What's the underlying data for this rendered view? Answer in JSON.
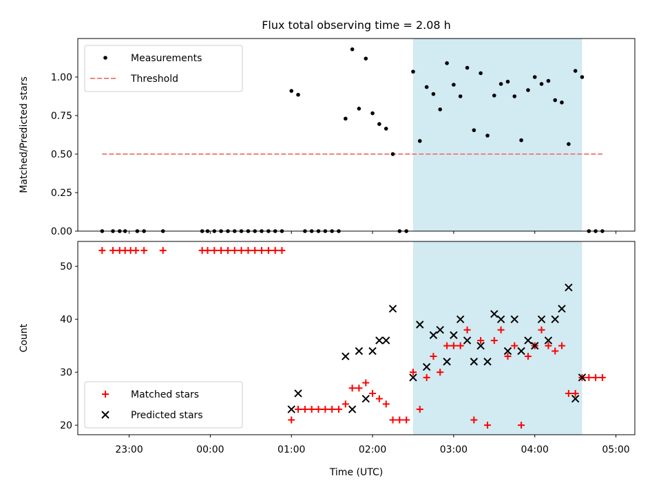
{
  "title": "Flux total observing time = 2.08 h",
  "colors": {
    "measurement": "#000000",
    "threshold": "#f08080",
    "matched": "#ff0000",
    "predicted": "#000000",
    "highlight": "#add8e6"
  },
  "chart_data": [
    {
      "type": "scatter",
      "name": "ratio-panel",
      "ylabel": "Matched/Predicted stars",
      "xlabel": "",
      "xlim_hours": [
        -1.633,
        5.233
      ],
      "ylim": [
        0,
        1.25
      ],
      "yticks": [
        0.0,
        0.25,
        0.5,
        0.75,
        1.0
      ],
      "ytick_labels": [
        "0.00",
        "0.25",
        "0.50",
        "0.75",
        "1.00"
      ],
      "highlight_hours": [
        2.5,
        4.583
      ],
      "legend": {
        "location": "top-left",
        "items": [
          "Measurements",
          "Threshold"
        ]
      },
      "threshold": {
        "name": "Threshold",
        "value": 0.5,
        "x_start_hours": -1.333,
        "x_end_hours": 4.833
      },
      "series": [
        {
          "name": "Measurements",
          "marker": "dot",
          "x_hours": [
            -1.333,
            -1.2,
            -1.117,
            -1.05,
            -0.9,
            -0.817,
            -0.583,
            -0.1,
            -0.033,
            0.05,
            0.133,
            0.217,
            0.3,
            0.383,
            0.467,
            0.55,
            0.633,
            0.717,
            0.8,
            0.883,
            1.0,
            1.083,
            1.167,
            1.25,
            1.333,
            1.417,
            1.5,
            1.583,
            1.667,
            1.75,
            1.833,
            1.917,
            2.0,
            2.083,
            2.167,
            2.25,
            2.333,
            2.417,
            2.5,
            2.583,
            2.667,
            2.75,
            2.833,
            2.917,
            3.0,
            3.083,
            3.167,
            3.25,
            3.333,
            3.417,
            3.5,
            3.583,
            3.667,
            3.75,
            3.833,
            3.917,
            4.0,
            4.083,
            4.167,
            4.25,
            4.333,
            4.417,
            4.5,
            4.583,
            4.667,
            4.75,
            4.833
          ],
          "y": [
            0,
            0,
            0,
            0,
            0,
            0,
            0,
            0,
            0,
            0,
            0,
            0,
            0,
            0,
            0,
            0,
            0,
            0,
            0,
            0,
            0.91,
            0.885,
            0,
            0,
            0,
            0,
            0,
            0,
            0.73,
            1.18,
            0.795,
            1.12,
            0.765,
            0.695,
            0.665,
            0.5,
            0,
            0,
            1.035,
            0.585,
            0.935,
            0.89,
            0.79,
            1.09,
            0.95,
            0.875,
            1.06,
            0.655,
            1.025,
            0.62,
            0.88,
            0.955,
            0.97,
            0.875,
            0.59,
            0.915,
            1.0,
            0.955,
            0.975,
            0.85,
            0.835,
            0.565,
            1.04,
            1.0,
            0,
            0,
            0
          ]
        }
      ]
    },
    {
      "type": "scatter",
      "name": "count-panel",
      "ylabel": "Count",
      "xlabel": "Time (UTC)",
      "xlim_hours": [
        -1.633,
        5.233
      ],
      "ylim": [
        18.2,
        54.7
      ],
      "yticks": [
        20,
        30,
        40,
        50
      ],
      "ytick_labels": [
        "20",
        "30",
        "40",
        "50"
      ],
      "xticks_hours": [
        -1,
        0,
        1,
        2,
        3,
        4,
        5
      ],
      "xtick_labels": [
        "23:00",
        "00:00",
        "01:00",
        "02:00",
        "03:00",
        "04:00",
        "05:00"
      ],
      "highlight_hours": [
        2.5,
        4.583
      ],
      "legend": {
        "location": "bottom-left",
        "items": [
          "Matched stars",
          "Predicted stars"
        ]
      },
      "series": [
        {
          "name": "Matched stars",
          "marker": "plus",
          "x_hours": [
            -1.333,
            -1.2,
            -1.117,
            -1.05,
            -0.983,
            -0.917,
            -0.817,
            -0.583,
            -0.1,
            -0.033,
            0.05,
            0.133,
            0.217,
            0.3,
            0.383,
            0.467,
            0.55,
            0.633,
            0.717,
            0.8,
            0.883,
            1.0,
            1.083,
            1.167,
            1.25,
            1.333,
            1.417,
            1.5,
            1.583,
            1.667,
            1.75,
            1.833,
            1.917,
            2.0,
            2.083,
            2.167,
            2.25,
            2.333,
            2.417,
            2.5,
            2.583,
            2.667,
            2.75,
            2.833,
            2.917,
            3.0,
            3.083,
            3.167,
            3.25,
            3.333,
            3.417,
            3.5,
            3.583,
            3.667,
            3.75,
            3.833,
            3.917,
            4.0,
            4.083,
            4.167,
            4.25,
            4.333,
            4.417,
            4.5,
            4.583,
            4.667,
            4.75,
            4.833
          ],
          "y": [
            53,
            53,
            53,
            53,
            53,
            53,
            53,
            53,
            53,
            53,
            53,
            53,
            53,
            53,
            53,
            53,
            53,
            53,
            53,
            53,
            53,
            21,
            23,
            23,
            23,
            23,
            23,
            23,
            23,
            24,
            27,
            27,
            28,
            26,
            25,
            24,
            21,
            21,
            21,
            30,
            23,
            29,
            33,
            30,
            35,
            35,
            35,
            38,
            21,
            36,
            20,
            36,
            38,
            33,
            35,
            20,
            33,
            35,
            38,
            35,
            34,
            35,
            26,
            26,
            29,
            29,
            29,
            29
          ]
        },
        {
          "name": "Predicted stars",
          "marker": "x",
          "x_hours": [
            1.0,
            1.083,
            1.667,
            1.75,
            1.833,
            1.917,
            2.0,
            2.083,
            2.167,
            2.25,
            2.5,
            2.583,
            2.667,
            2.75,
            2.833,
            2.917,
            3.0,
            3.083,
            3.167,
            3.25,
            3.333,
            3.417,
            3.5,
            3.583,
            3.667,
            3.75,
            3.833,
            3.917,
            4.0,
            4.083,
            4.167,
            4.25,
            4.333,
            4.417,
            4.5,
            4.583
          ],
          "y": [
            23,
            26,
            33,
            23,
            34,
            25,
            34,
            36,
            36,
            42,
            29,
            39,
            31,
            37,
            38,
            32,
            37,
            40,
            36,
            32,
            35,
            32,
            41,
            40,
            34,
            40,
            34,
            36,
            35,
            40,
            36,
            40,
            42,
            46,
            25,
            29
          ]
        }
      ]
    }
  ]
}
